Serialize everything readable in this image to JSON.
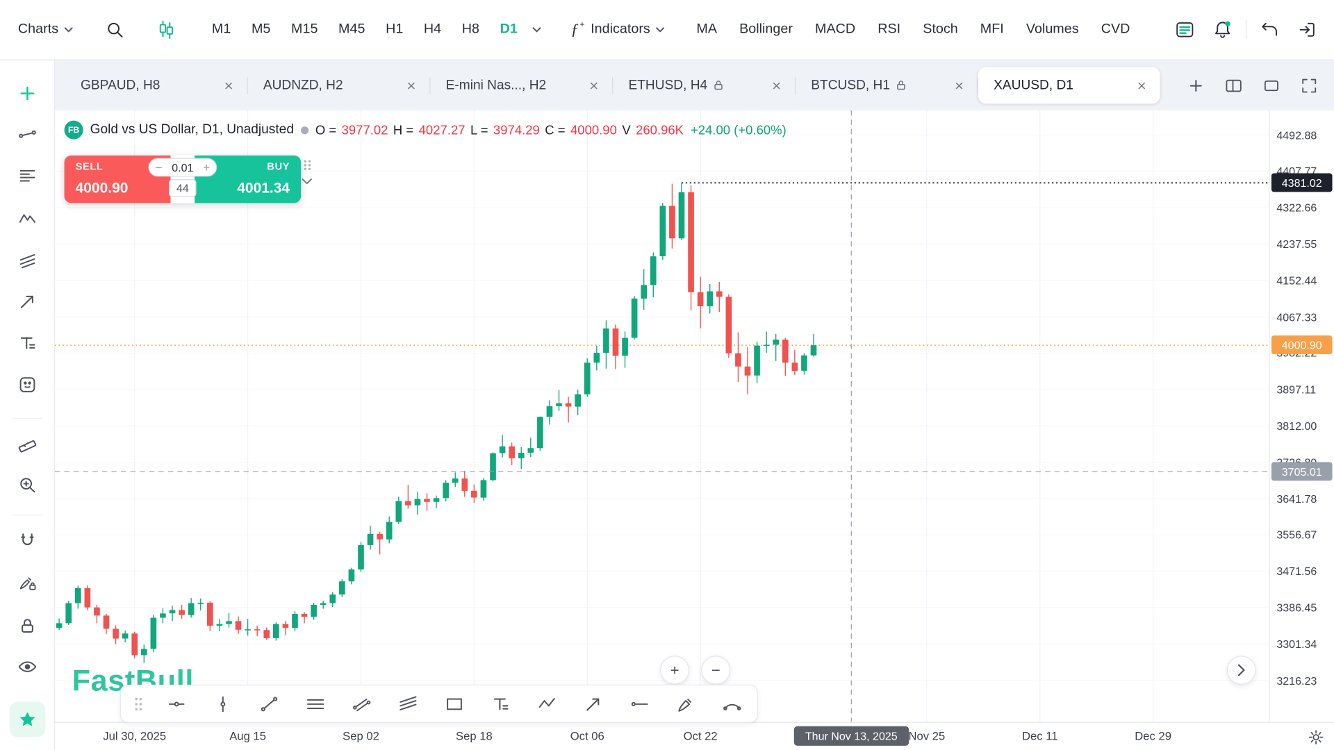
{
  "toolbar": {
    "charts_label": "Charts",
    "timeframes": [
      "M1",
      "M5",
      "M15",
      "M45",
      "H1",
      "H4",
      "H8",
      "D1"
    ],
    "active_timeframe": "D1",
    "indicators_fx": "ƒ",
    "indicators_fx_plus": "+",
    "indicators_label": "Indicators",
    "indicator_shortcuts": [
      "MA",
      "Bollinger",
      "MACD",
      "RSI",
      "Stoch",
      "MFI",
      "Volumes",
      "CVD"
    ],
    "right_icons": [
      "panels",
      "alerts-bell",
      "undo",
      "sign-in"
    ]
  },
  "tabs": [
    {
      "label": "GBPAUD, H8",
      "locked": false,
      "active": false
    },
    {
      "label": "AUDNZD, H2",
      "locked": false,
      "active": false
    },
    {
      "label": "E-mini Nas..., H2",
      "locked": false,
      "active": false
    },
    {
      "label": "ETHUSD, H4",
      "locked": true,
      "active": false
    },
    {
      "label": "BTCUSD, H1",
      "locked": true,
      "active": false
    },
    {
      "label": "XAUUSD, D1",
      "locked": false,
      "active": true
    }
  ],
  "sidebar_tools": [
    "add",
    "trend-line",
    "horizontal-lines",
    "pattern",
    "channels",
    "arrow",
    "text",
    "stickers",
    "measure",
    "zoom",
    "magnet",
    "brush-lock",
    "lock",
    "eye",
    "favorites"
  ],
  "symbol_header": {
    "badge": "FB",
    "title": "Gold vs US Dollar, D1, Unadjusted",
    "o_label": "O =",
    "o": "3977.02",
    "h_label": "H =",
    "h": "4027.27",
    "l_label": "L =",
    "l": "3974.29",
    "c_label": "C =",
    "c": "4000.90",
    "v_label": "V",
    "v": "260.96K",
    "change": "+24.00 (+0.60%)"
  },
  "order_panel": {
    "sell_label": "SELL",
    "sell_price": "4000.90",
    "qty": "0.01",
    "spread": "44",
    "buy_label": "BUY",
    "buy_price": "4001.34"
  },
  "watermark": "FastBull",
  "glyphs": {
    "close": "×",
    "plus": "+",
    "minus": "−"
  },
  "colors": {
    "accent_green": "#14b98f",
    "candle_up": "#11a77c",
    "candle_down": "#f0524f",
    "sell_red": "#fb5a5a",
    "buy_green": "#16c39a",
    "last_price": "#f7a049",
    "high_badge": "#1c212c",
    "crosshair_grey": "#9aa0ab",
    "date_badge": "#5b6069",
    "value_red": "#f23645",
    "change_green": "#12a474"
  },
  "chart_data": {
    "type": "candlestick",
    "title": "Gold vs US Dollar",
    "symbol": "XAUUSD",
    "timeframe": "D1",
    "price_range": {
      "top": 4492.88,
      "bottom": 3216.23
    },
    "y_axis_labels": [
      "4492.88",
      "4407.77",
      "4322.66",
      "4237.55",
      "4152.44",
      "4067.33",
      "3982.22",
      "3897.11",
      "3812.00",
      "3726.89",
      "3641.78",
      "3556.67",
      "3471.56",
      "3386.45",
      "3301.34",
      "3216.23"
    ],
    "x_axis_ticks": [
      {
        "label": "Jul 30, 2025",
        "index": 9
      },
      {
        "label": "Aug 15",
        "index": 21
      },
      {
        "label": "Sep 02",
        "index": 33
      },
      {
        "label": "Sep 18",
        "index": 45
      },
      {
        "label": "Oct 06",
        "index": 57
      },
      {
        "label": "Oct 22",
        "index": 69
      },
      {
        "label": "Nov 25",
        "index": 93
      },
      {
        "label": "Dec 11",
        "index": 105
      },
      {
        "label": "Dec 29",
        "index": 117
      }
    ],
    "high_line": {
      "price": 4381.02,
      "label": "4381.02",
      "start_index": 67
    },
    "last_price_line": {
      "price": 4000.9,
      "label": "4000.90"
    },
    "crosshair": {
      "price": 3705.01,
      "price_label": "3705.01",
      "date_label": "Thur Nov 13, 2025",
      "index": 85
    },
    "candles": [
      [
        "Jul 17",
        3348,
        3356,
        3331,
        3339
      ],
      [
        "Jul 18",
        3339,
        3361,
        3334,
        3350
      ],
      [
        "Jul 21",
        3350,
        3402,
        3346,
        3397
      ],
      [
        "Jul 22",
        3397,
        3438,
        3384,
        3432
      ],
      [
        "Jul 23",
        3432,
        3439,
        3381,
        3387
      ],
      [
        "Jul 24",
        3387,
        3393,
        3350,
        3368
      ],
      [
        "Jul 25",
        3368,
        3372,
        3325,
        3337
      ],
      [
        "Jul 28",
        3337,
        3345,
        3301,
        3314
      ],
      [
        "Jul 29",
        3314,
        3333,
        3305,
        3326
      ],
      [
        "Jul 30",
        3326,
        3330,
        3268,
        3275
      ],
      [
        "Jul 31",
        3275,
        3300,
        3257,
        3290
      ],
      [
        "Aug 01",
        3290,
        3369,
        3282,
        3363
      ],
      [
        "Aug 04",
        3363,
        3385,
        3350,
        3373
      ],
      [
        "Aug 05",
        3373,
        3391,
        3355,
        3381
      ],
      [
        "Aug 06",
        3381,
        3393,
        3360,
        3369
      ],
      [
        "Aug 07",
        3369,
        3409,
        3363,
        3397
      ],
      [
        "Aug 08",
        3397,
        3408,
        3380,
        3398
      ],
      [
        "Aug 11",
        3398,
        3402,
        3332,
        3344
      ],
      [
        "Aug 12",
        3344,
        3360,
        3331,
        3348
      ],
      [
        "Aug 13",
        3348,
        3374,
        3340,
        3355
      ],
      [
        "Aug 14",
        3355,
        3366,
        3325,
        3335
      ],
      [
        "Aug 15",
        3335,
        3360,
        3321,
        3336
      ],
      [
        "Aug 18",
        3336,
        3344,
        3320,
        3334
      ],
      [
        "Aug 19",
        3334,
        3340,
        3311,
        3315
      ],
      [
        "Aug 20",
        3315,
        3352,
        3309,
        3348
      ],
      [
        "Aug 21",
        3348,
        3355,
        3322,
        3339
      ],
      [
        "Aug 22",
        3339,
        3378,
        3331,
        3372
      ],
      [
        "Aug 25",
        3372,
        3376,
        3350,
        3365
      ],
      [
        "Aug 26",
        3365,
        3398,
        3358,
        3393
      ],
      [
        "Aug 27",
        3393,
        3403,
        3384,
        3397
      ],
      [
        "Aug 28",
        3397,
        3423,
        3388,
        3417
      ],
      [
        "Aug 29",
        3417,
        3453,
        3411,
        3448
      ],
      [
        "Sep 01",
        3448,
        3480,
        3441,
        3476
      ],
      [
        "Sep 02",
        3476,
        3540,
        3470,
        3533
      ],
      [
        "Sep 03",
        3533,
        3578,
        3522,
        3559
      ],
      [
        "Sep 04",
        3559,
        3564,
        3511,
        3546
      ],
      [
        "Sep 05",
        3546,
        3600,
        3537,
        3587
      ],
      [
        "Sep 08",
        3587,
        3646,
        3582,
        3636
      ],
      [
        "Sep 09",
        3636,
        3674,
        3618,
        3626
      ],
      [
        "Sep 10",
        3626,
        3657,
        3604,
        3641
      ],
      [
        "Sep 11",
        3641,
        3654,
        3613,
        3634
      ],
      [
        "Sep 12",
        3634,
        3649,
        3620,
        3643
      ],
      [
        "Sep 15",
        3643,
        3685,
        3635,
        3679
      ],
      [
        "Sep 16",
        3679,
        3703,
        3669,
        3689
      ],
      [
        "Sep 17",
        3689,
        3707,
        3646,
        3660
      ],
      [
        "Sep 18",
        3660,
        3675,
        3632,
        3644
      ],
      [
        "Sep 19",
        3644,
        3690,
        3637,
        3685
      ],
      [
        "Sep 22",
        3685,
        3750,
        3682,
        3748
      ],
      [
        "Sep 23",
        3748,
        3791,
        3738,
        3764
      ],
      [
        "Sep 24",
        3764,
        3773,
        3720,
        3736
      ],
      [
        "Sep 25",
        3736,
        3762,
        3711,
        3749
      ],
      [
        "Sep 26",
        3749,
        3784,
        3739,
        3760
      ],
      [
        "Sep 29",
        3760,
        3834,
        3754,
        3833
      ],
      [
        "Sep 30",
        3833,
        3872,
        3815,
        3858
      ],
      [
        "Oct 01",
        3858,
        3896,
        3847,
        3865
      ],
      [
        "Oct 02",
        3865,
        3880,
        3820,
        3857
      ],
      [
        "Oct 03",
        3857,
        3897,
        3837,
        3886
      ],
      [
        "Oct 06",
        3886,
        3970,
        3880,
        3960
      ],
      [
        "Oct 07",
        3960,
        4000,
        3942,
        3983
      ],
      [
        "Oct 08",
        3983,
        4059,
        3946,
        4040
      ],
      [
        "Oct 09",
        4040,
        4049,
        3945,
        3976
      ],
      [
        "Oct 10",
        3976,
        4033,
        3948,
        4018
      ],
      [
        "Oct 13",
        4018,
        4116,
        4014,
        4110
      ],
      [
        "Oct 14",
        4110,
        4179,
        4084,
        4142
      ],
      [
        "Oct 15",
        4142,
        4218,
        4113,
        4209
      ],
      [
        "Oct 16",
        4209,
        4334,
        4201,
        4327
      ],
      [
        "Oct 17",
        4327,
        4379,
        4227,
        4251
      ],
      [
        "Oct 20",
        4251,
        4381,
        4247,
        4359
      ],
      [
        "Oct 21",
        4359,
        4375,
        4082,
        4125
      ],
      [
        "Oct 22",
        4125,
        4161,
        4040,
        4092
      ],
      [
        "Oct 23",
        4092,
        4144,
        4075,
        4127
      ],
      [
        "Oct 24",
        4127,
        4149,
        4079,
        4114
      ],
      [
        "Oct 27",
        4114,
        4120,
        3971,
        3982
      ],
      [
        "Oct 28",
        3982,
        4031,
        3915,
        3951
      ],
      [
        "Oct 29",
        3951,
        3996,
        3886,
        3930
      ],
      [
        "Oct 30",
        3930,
        4009,
        3912,
        4000
      ],
      [
        "Oct 31",
        4000,
        4033,
        3983,
        4002
      ],
      [
        "Nov 03",
        4002,
        4027,
        3964,
        4014
      ],
      [
        "Nov 04",
        4014,
        4018,
        3929,
        3960
      ],
      [
        "Nov 05",
        3960,
        3990,
        3931,
        3941
      ],
      [
        "Nov 06",
        3941,
        3982,
        3932,
        3977
      ],
      [
        "Nov 07",
        3977.02,
        4027.27,
        3974.29,
        4000.9
      ]
    ]
  }
}
